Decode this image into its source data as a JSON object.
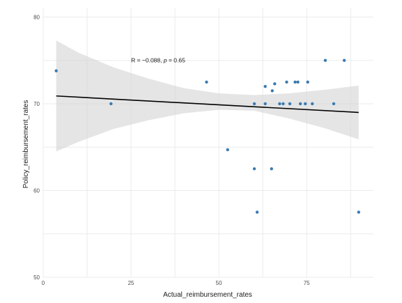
{
  "chart_data": {
    "type": "scatter",
    "xlabel": "Actual_reimbursement_rates",
    "ylabel": "Policy_reimbursement_rates",
    "xlim": [
      0,
      94
    ],
    "ylim": [
      50,
      81
    ],
    "x_ticks": [
      0,
      25,
      50,
      75
    ],
    "y_ticks": [
      50,
      60,
      70,
      80
    ],
    "grid": true,
    "annotation": {
      "r_label": "R = −0.088, ",
      "p_symbol": "p",
      "p_value": " = 0.65",
      "x": 25,
      "y": 75
    },
    "points": [
      {
        "x": 3.7,
        "y": 73.8
      },
      {
        "x": 19.3,
        "y": 70
      },
      {
        "x": 46.5,
        "y": 72.5
      },
      {
        "x": 52.5,
        "y": 64.7
      },
      {
        "x": 60.1,
        "y": 62.5
      },
      {
        "x": 60.1,
        "y": 70
      },
      {
        "x": 60.9,
        "y": 57.5
      },
      {
        "x": 63.2,
        "y": 72
      },
      {
        "x": 63.2,
        "y": 70
      },
      {
        "x": 65,
        "y": 62.5
      },
      {
        "x": 65.2,
        "y": 71.5
      },
      {
        "x": 65.9,
        "y": 72.3
      },
      {
        "x": 67.3,
        "y": 70
      },
      {
        "x": 68.3,
        "y": 70
      },
      {
        "x": 69.3,
        "y": 72.5
      },
      {
        "x": 70.2,
        "y": 70
      },
      {
        "x": 71.7,
        "y": 72.5
      },
      {
        "x": 72.5,
        "y": 72.5
      },
      {
        "x": 73.2,
        "y": 70
      },
      {
        "x": 74.6,
        "y": 70
      },
      {
        "x": 75.3,
        "y": 72.5
      },
      {
        "x": 76.6,
        "y": 70
      },
      {
        "x": 80.3,
        "y": 75
      },
      {
        "x": 82.7,
        "y": 70
      },
      {
        "x": 85.7,
        "y": 75
      },
      {
        "x": 89.8,
        "y": 57.5
      }
    ],
    "regression": {
      "x": [
        3.7,
        89.8
      ],
      "y": [
        70.9,
        69.0
      ]
    },
    "confidence_band": {
      "x": [
        3.7,
        10,
        20,
        30,
        40,
        50,
        60,
        70,
        80,
        89.8
      ],
      "upper": [
        77.3,
        75.9,
        74.2,
        72.9,
        71.8,
        71.2,
        71.0,
        71.2,
        71.6,
        72.1
      ],
      "lower": [
        64.5,
        65.6,
        67.1,
        68.1,
        68.9,
        69.3,
        69.2,
        68.3,
        67.2,
        65.9
      ]
    },
    "colors": {
      "point": "#3b7bb1",
      "line": "#000000",
      "band": "#d4d4d4",
      "grid": "#ebebeb"
    }
  }
}
